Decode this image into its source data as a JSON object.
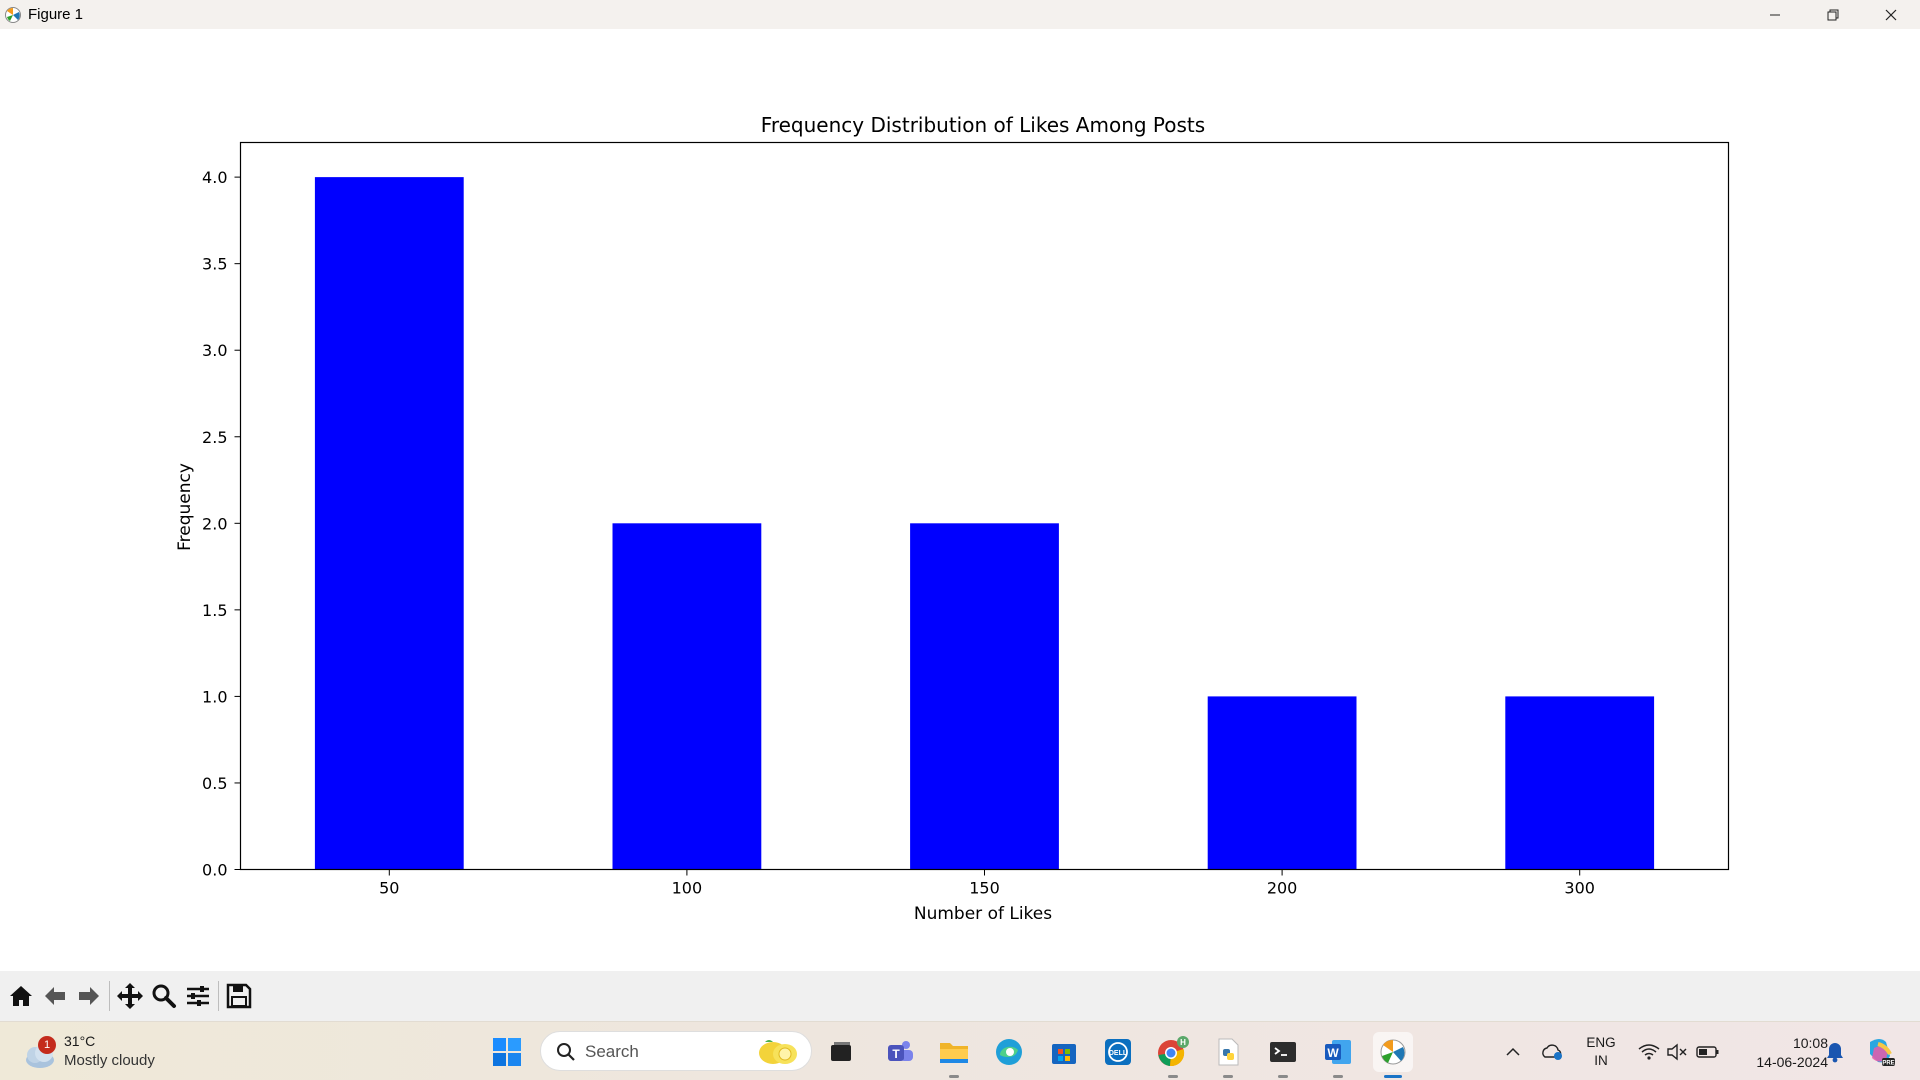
{
  "window": {
    "title": "Figure 1"
  },
  "chart_data": {
    "type": "bar",
    "title": "Frequency Distribution of Likes Among Posts",
    "xlabel": "Number of Likes",
    "ylabel": "Frequency",
    "categories": [
      "50",
      "100",
      "150",
      "200",
      "300"
    ],
    "values": [
      4,
      2,
      2,
      1,
      1
    ],
    "ylim": [
      0,
      4.2
    ],
    "yticks": [
      "0.0",
      "0.5",
      "1.0",
      "1.5",
      "2.0",
      "2.5",
      "3.0",
      "3.5",
      "4.0"
    ],
    "bar_color": "#0000ff",
    "grid": false,
    "legend": "none"
  },
  "toolbar": {
    "buttons": [
      "home-icon",
      "back-icon",
      "forward-icon",
      "pan-icon",
      "zoom-icon",
      "configure-subplots-icon",
      "save-icon"
    ]
  },
  "taskbar": {
    "weather": {
      "temp": "31°C",
      "condition": "Mostly cloudy",
      "badge": "1"
    },
    "search_placeholder": "Search",
    "apps": [
      "start-icon",
      "task-view-icon",
      "teams-icon",
      "file-explorer-icon",
      "edge-icon",
      "store-icon",
      "dell-icon",
      "chrome-icon",
      "python-file-icon",
      "terminal-icon",
      "word-icon",
      "matplotlib-icon"
    ],
    "language": {
      "line1": "ENG",
      "line2": "IN"
    },
    "time": "10:08",
    "date": "14-06-2024"
  }
}
